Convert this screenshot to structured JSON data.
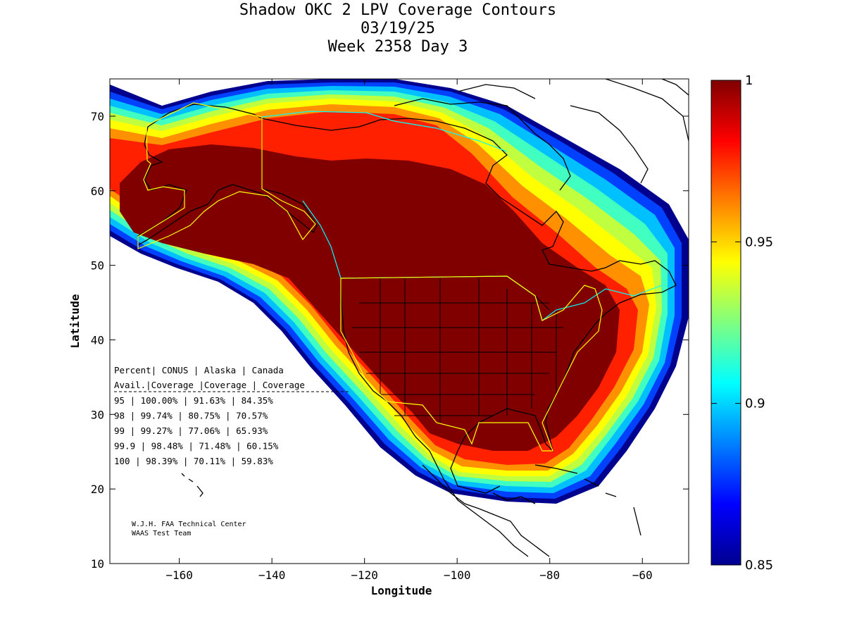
{
  "title": {
    "line1": "Shadow OKC 2 LPV Coverage Contours",
    "line2": "03/19/25",
    "line3": "Week 2358 Day 3"
  },
  "axes": {
    "xlabel": "Longitude",
    "ylabel": "Latitude",
    "xlim": [
      -175,
      -50
    ],
    "ylim": [
      10,
      75
    ],
    "xticks": [
      -160,
      -140,
      -120,
      -100,
      -80,
      -60
    ],
    "yticks": [
      10,
      20,
      30,
      40,
      50,
      60,
      70
    ]
  },
  "colorbar": {
    "range": [
      0.85,
      1
    ],
    "ticks": [
      "1",
      "0.95",
      "0.9",
      "0.85"
    ],
    "tick_values": [
      1,
      0.95,
      0.9,
      0.85
    ],
    "colormap": "jet",
    "stops": [
      "#00008f",
      "#0000ff",
      "#0080ff",
      "#00ffff",
      "#80ff80",
      "#ffff00",
      "#ff8000",
      "#ff0000",
      "#800000"
    ]
  },
  "map": {
    "plot_area_background": "#ffffff",
    "max_color": "#800000",
    "coastline_color": "#000000",
    "alaska_boundary_color": "#ffff00",
    "canada_boundary_color": "#00ffff"
  },
  "stats_table": {
    "header1": [
      "Percent",
      "CONUS",
      "Alaska",
      "Canada"
    ],
    "header2": [
      "Avail.",
      "Coverage",
      "Coverage",
      "Coverage"
    ],
    "rows": [
      [
        "95",
        "100.00%",
        "91.63%",
        "84.35%"
      ],
      [
        "98",
        "99.74%",
        "80.75%",
        "70.57%"
      ],
      [
        "99",
        "99.27%",
        "77.06%",
        "65.93%"
      ],
      [
        "99.9",
        "98.48%",
        "71.48%",
        "60.15%"
      ],
      [
        "100",
        "98.39%",
        "70.11%",
        "59.83%"
      ]
    ]
  },
  "credit": {
    "line1": "W.J.H. FAA Technical Center",
    "line2": "WAAS Test Team"
  }
}
